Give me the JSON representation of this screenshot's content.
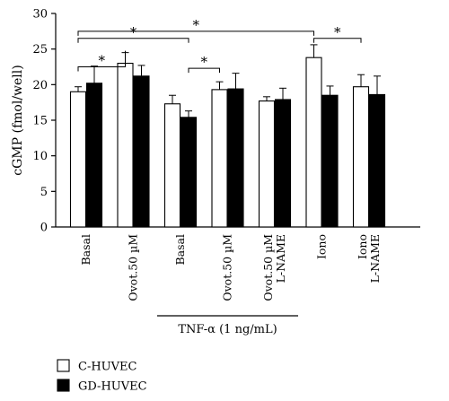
{
  "chart_data": {
    "type": "bar",
    "ylabel": "cGMP (fmol/well)",
    "ylim": [
      0,
      30
    ],
    "yticks": [
      0,
      5,
      10,
      15,
      20,
      25,
      30
    ],
    "categories": [
      {
        "lines": [
          "Basal"
        ]
      },
      {
        "lines": [
          "Ovot.50 µM"
        ]
      },
      {
        "lines": [
          "Basal"
        ]
      },
      {
        "lines": [
          "Ovot.50 µM"
        ]
      },
      {
        "lines": [
          "Ovot.50 µM",
          "L-NAME"
        ]
      },
      {
        "lines": [
          "Iono"
        ]
      },
      {
        "lines": [
          "Iono",
          "L-NAME"
        ]
      }
    ],
    "series": [
      {
        "name": "C-HUVEC",
        "color": "#ffffff",
        "values": [
          19.0,
          23.0,
          17.3,
          19.3,
          17.7,
          23.8,
          19.7
        ],
        "errors": [
          0.7,
          1.5,
          1.2,
          1.1,
          0.6,
          1.8,
          1.7
        ]
      },
      {
        "name": "GD-HUVEC",
        "color": "#000000",
        "values": [
          20.2,
          21.2,
          15.4,
          19.4,
          17.9,
          18.5,
          18.6
        ],
        "errors": [
          2.4,
          1.5,
          0.9,
          2.2,
          1.6,
          1.3,
          2.6
        ]
      }
    ],
    "group_annotation": {
      "label": "TNF-α (1 ng/mL)",
      "from": 2,
      "to": 4
    },
    "significance": [
      {
        "from": [
          0,
          0
        ],
        "to": [
          1,
          0
        ],
        "level": 22.5,
        "label": "*"
      },
      {
        "from": [
          0,
          0
        ],
        "to": [
          2,
          1
        ],
        "level": 26.5,
        "label": "*"
      },
      {
        "from": [
          0,
          0
        ],
        "to": [
          5,
          0
        ],
        "level": 27.5,
        "label": "*"
      },
      {
        "from": [
          2,
          1
        ],
        "to": [
          3,
          0
        ],
        "level": 22.3,
        "label": "*"
      },
      {
        "from": [
          5,
          0
        ],
        "to": [
          6,
          0
        ],
        "level": 26.5,
        "label": "*"
      }
    ],
    "legend": {
      "position": "bottom-left",
      "entries": [
        {
          "label": "C-HUVEC",
          "color": "#ffffff"
        },
        {
          "label": "GD-HUVEC",
          "color": "#000000"
        }
      ]
    },
    "grid": false
  }
}
